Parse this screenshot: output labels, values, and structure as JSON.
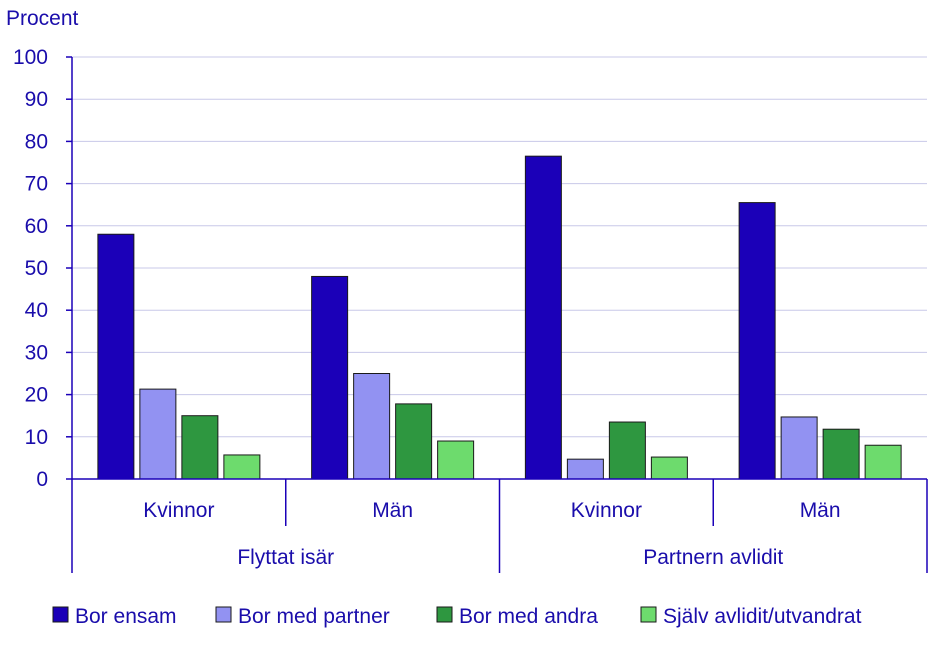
{
  "chart_data": {
    "type": "bar",
    "ylabel": "Procent",
    "ylim": [
      0,
      100
    ],
    "yticks": [
      0,
      10,
      20,
      30,
      40,
      50,
      60,
      70,
      80,
      90,
      100
    ],
    "grid": true,
    "legend_position": "bottom",
    "groups": [
      "Flyttat isär",
      "Partnern avlidit"
    ],
    "categories": [
      "Kvinnor",
      "Män",
      "Kvinnor",
      "Män"
    ],
    "category_group": [
      0,
      0,
      1,
      1
    ],
    "series": [
      {
        "name": "Bor ensam",
        "color": "#1b00b8",
        "values": [
          58,
          48,
          76.5,
          65.5
        ]
      },
      {
        "name": "Bor med partner",
        "color": "#9292f2",
        "values": [
          21.3,
          25,
          4.7,
          14.7
        ]
      },
      {
        "name": "Bor med andra",
        "color": "#2e9740",
        "values": [
          15,
          17.8,
          13.5,
          11.8
        ]
      },
      {
        "name": "Själv avlidit/utvandrat",
        "color": "#6ddb6d",
        "values": [
          5.7,
          9,
          5.2,
          8
        ]
      }
    ]
  },
  "colors": {
    "text": "#1a0dab",
    "axis": "#1b00b8",
    "grid": "#c8c8e8"
  }
}
